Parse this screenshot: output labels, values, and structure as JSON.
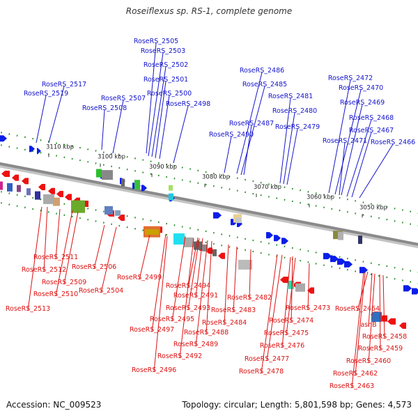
{
  "title": "Roseiflexus sp. RS-1, complete genome",
  "accession": "Accession: NC_009523",
  "summary": "Topology: circular; Length: 5,801,598 bp; Genes: 4,573",
  "colors": {
    "top_label": "#1414cc",
    "bottom_label": "#dd1111",
    "forward_gene": "#0a1ee8",
    "reverse_gene": "#ee1111",
    "backbone": "#8a8a8a",
    "tick": "#1a8a1a"
  },
  "ticks": [
    "3110 kbp",
    "3100 kbp",
    "3090 kbp",
    "3080 kbp",
    "3070 kbp",
    "3060 kbp",
    "3050 kbp"
  ],
  "top_labels": [
    "RoseRS_2505",
    "RoseRS_2503",
    "RoseRS_2502",
    "RoseRS_2501",
    "RoseRS_2500",
    "RoseRS_2498",
    "RoseRS_2507",
    "RoseRS_2508",
    "RoseRS_2517",
    "RoseRS_2519",
    "RoseRS_2486",
    "RoseRS_2485",
    "RoseRS_2481",
    "RoseRS_2480",
    "RoseRS_2479",
    "RoseRS_2487",
    "RoseRS_2490",
    "RoseRS_2472",
    "RoseRS_2470",
    "RoseRS_2469",
    "RoseRS_2468",
    "RoseRS_2467",
    "RoseRS_2471",
    "RoseRS_2466"
  ],
  "bottom_labels": [
    "RoseRS_2511",
    "RoseRS_2512",
    "RoseRS_2509",
    "RoseRS_2510",
    "RoseRS_2513",
    "RoseRS_2506",
    "RoseRS_2504",
    "RoseRS_2499",
    "RoseRS_2494",
    "RoseRS_2491",
    "RoseRS_2493",
    "RoseRS_2495",
    "RoseRS_2497",
    "RoseRS_2488",
    "RoseRS_2489",
    "RoseRS_2492",
    "RoseRS_2496",
    "RoseRS_2484",
    "RoseRS_2483",
    "RoseRS_2482",
    "RoseRS_2474",
    "RoseRS_2475",
    "RoseRS_2476",
    "RoseRS_2477",
    "RoseRS_2478",
    "RoseRS_2473",
    "RoseRS_2464",
    "asnB",
    "RoseRS_2458",
    "RoseRS_2459",
    "RoseRS_2460",
    "RoseRS_2462",
    "RoseRS_2463"
  ]
}
